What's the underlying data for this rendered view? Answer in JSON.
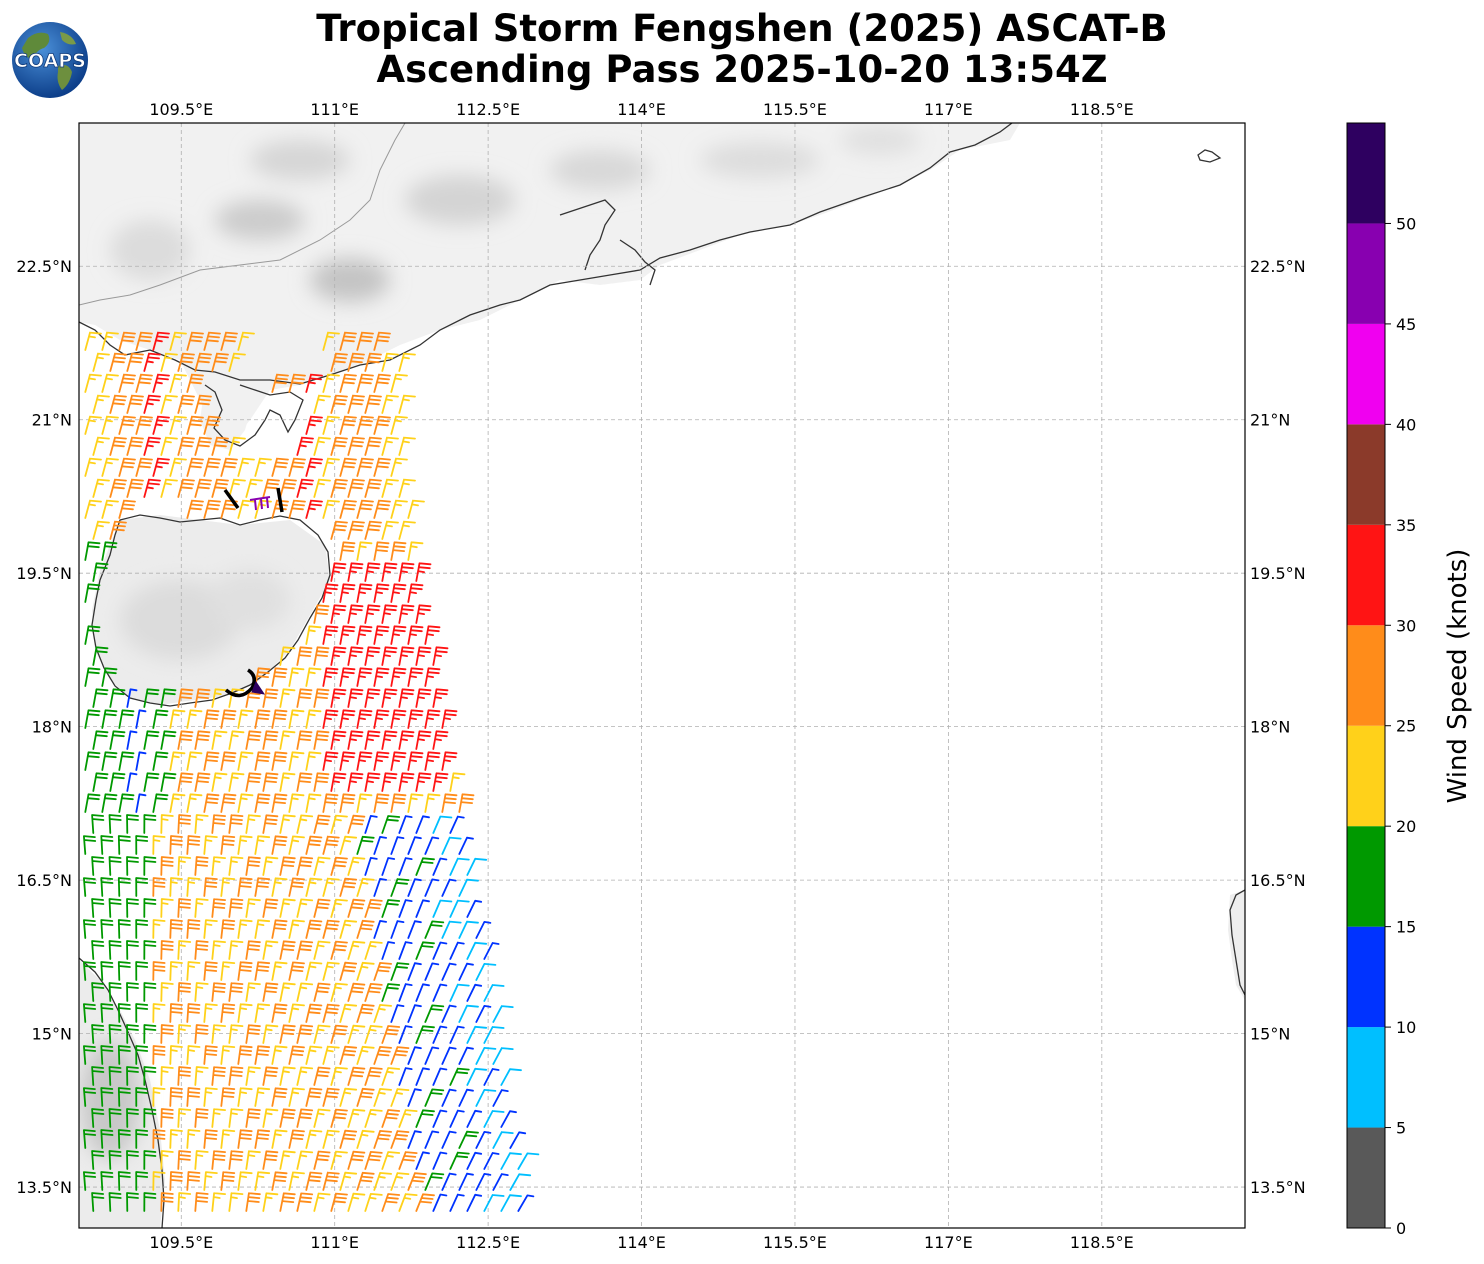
{
  "title": {
    "line1": "Tropical Storm Fengshen (2025) ASCAT-B",
    "line2": "Ascending Pass 2025-10-20 13:54Z"
  },
  "logo": {
    "text": "COAPS",
    "icon": "globe-logo-icon"
  },
  "map": {
    "lon_range": [
      108.5,
      119.9
    ],
    "lat_range": [
      13.1,
      23.9
    ],
    "lon_ticks": [
      "109.5°E",
      "111°E",
      "112.5°E",
      "114°E",
      "115.5°E",
      "117°E",
      "118.5°E"
    ],
    "lat_ticks": [
      "22.5°N",
      "21°N",
      "19.5°N",
      "18°N",
      "16.5°N",
      "15°N",
      "13.5°N"
    ],
    "grid": "dashed",
    "land_shading": "grayscale cloud imagery over land"
  },
  "colorbar": {
    "label": "Wind Speed (knots)",
    "ticks": [
      "0",
      "5",
      "10",
      "15",
      "20",
      "25",
      "30",
      "35",
      "40",
      "45",
      "50"
    ],
    "bins": [
      {
        "from": 0,
        "to": 5,
        "color": "#595959"
      },
      {
        "from": 5,
        "to": 10,
        "color": "#00bfff"
      },
      {
        "from": 10,
        "to": 15,
        "color": "#0033ff"
      },
      {
        "from": 15,
        "to": 20,
        "color": "#009900"
      },
      {
        "from": 20,
        "to": 25,
        "color": "#ffd11a"
      },
      {
        "from": 25,
        "to": 30,
        "color": "#ff8c1a"
      },
      {
        "from": 30,
        "to": 35,
        "color": "#ff1414"
      },
      {
        "from": 35,
        "to": 40,
        "color": "#8b3a2a"
      },
      {
        "from": 40,
        "to": 45,
        "color": "#f000f0"
      },
      {
        "from": 45,
        "to": 50,
        "color": "#8800b0"
      },
      {
        "from": 50,
        "to": 55,
        "color": "#2e0060"
      }
    ]
  },
  "chart_data": {
    "type": "wind-barb map",
    "variable": "ASCAT-B ocean surface wind",
    "units": "knots",
    "swath_speed_regions": [
      {
        "region": "north of 19.5°N, 108.6–111.5°E",
        "speed_range_kt": [
          20,
          30
        ]
      },
      {
        "region": "17.5–19.8°N, 111.3–112.2°E",
        "speed_range_kt": [
          30,
          35
        ]
      },
      {
        "region": "15–18°N, 109.5–112°E",
        "speed_range_kt": [
          20,
          30
        ]
      },
      {
        "region": "western edge 15–18.5°N",
        "speed_range_kt": [
          10,
          20
        ]
      },
      {
        "region": "13.3–16°N, 112–113°E",
        "speed_range_kt": [
          5,
          15
        ]
      }
    ],
    "storm_track_symbols": [
      {
        "lon": 110.6,
        "lat": 20.3,
        "color": "black"
      },
      {
        "lon": 110.6,
        "lat": 18.4,
        "color": "black"
      }
    ]
  }
}
